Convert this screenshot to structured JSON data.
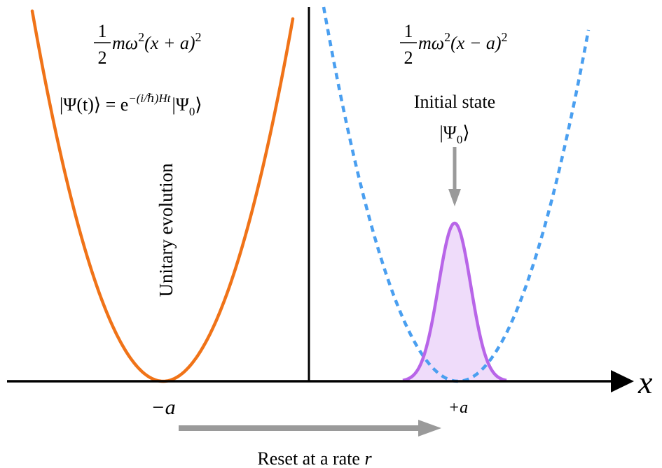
{
  "left_well": {
    "potential": {
      "frac_num": "1",
      "frac_den": "2",
      "body": "mω",
      "sup": "2",
      "paren": "(x + a)",
      "sup2": "2"
    },
    "state": {
      "lhs": "|Ψ(t)⟩ = e",
      "exp": "−(i/ℏ)Ht",
      "rhs_psi": "|Ψ",
      "rhs_sub": "0",
      "rhs_close": "⟩"
    },
    "evolution_label": "Unitary evolution",
    "color": "#f07318"
  },
  "right_well": {
    "potential": {
      "frac_num": "1",
      "frac_den": "2",
      "body": "mω",
      "sup": "2",
      "paren": "(x − a)",
      "sup2": "2"
    },
    "initial_state_label": "Initial state",
    "initial_ket": {
      "psi": "|Ψ",
      "sub": "0",
      "close": "⟩"
    },
    "color": "#4a9ff0",
    "gaussian_color": "#b865e8",
    "gaussian_fill": "#efdcfa"
  },
  "axis": {
    "label": "x",
    "left_tick": "−a",
    "right_tick": "+a"
  },
  "reset": {
    "label_text": "Reset at a rate ",
    "label_var": "r",
    "arrow_color": "#9a9a9a"
  }
}
